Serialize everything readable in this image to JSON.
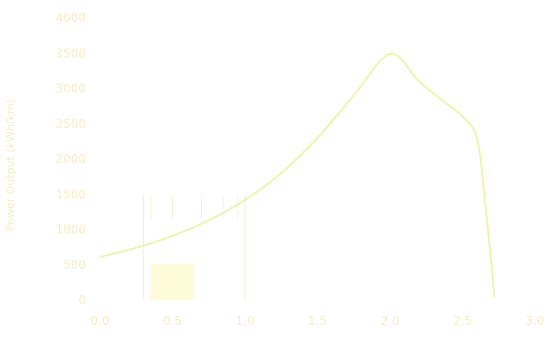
{
  "chart_data": {
    "type": "line",
    "title": "",
    "ylabel": "Power Output (kWh/km)",
    "xlabel": "",
    "x_ticks": [
      "0.0",
      "0.5",
      "1.0",
      "1.5",
      "2.0",
      "2.5",
      "3.0"
    ],
    "y_ticks": [
      "0",
      "500",
      "1000",
      "1500",
      "2000",
      "2500",
      "3000",
      "3500",
      "4000"
    ],
    "xlim": [
      0,
      3.0
    ],
    "ylim": [
      0,
      4000
    ],
    "series": [
      {
        "name": "",
        "color": "#e8f7b0",
        "x": [
          0.0,
          0.25,
          0.5,
          0.75,
          1.0,
          1.25,
          1.5,
          1.75,
          2.0,
          2.2,
          2.35,
          2.5,
          2.6,
          2.65,
          2.7,
          2.72
        ],
        "y": [
          610,
          740,
          910,
          1130,
          1420,
          1800,
          2300,
          2900,
          3490,
          3100,
          2850,
          2600,
          2300,
          1500,
          500,
          40
        ]
      }
    ],
    "bar": {
      "x_start": 0.35,
      "x_end": 0.65,
      "value": 510,
      "color": "#fefbd9"
    },
    "vlines": [
      0.3,
      1.0
    ],
    "grid": false,
    "legend": "none"
  }
}
